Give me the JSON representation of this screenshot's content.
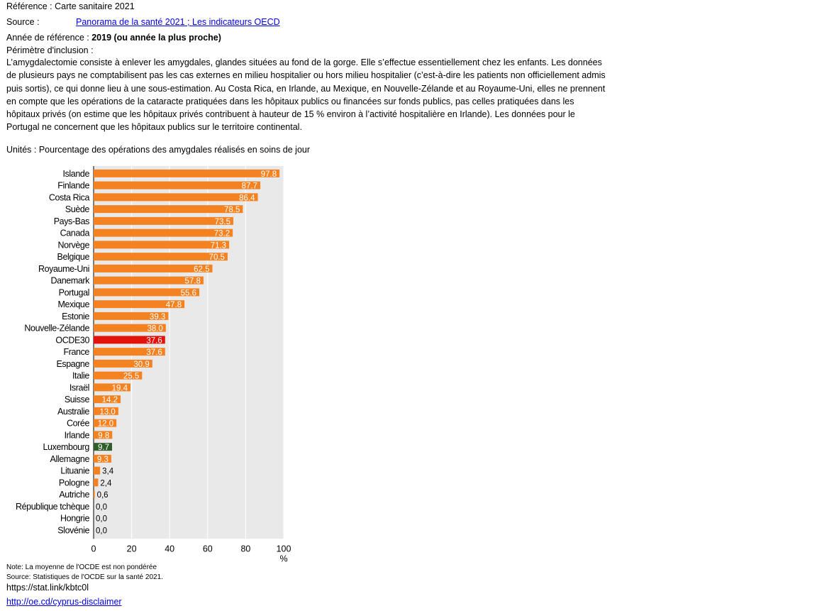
{
  "header": {
    "reference": "Référence : Carte sanitaire 2021",
    "source_label": "Source :",
    "source_link": "Panorama de la santé 2021 ; Les indicateurs OECD",
    "year_label": "Année de référence : ",
    "year_value": "2019 (ou année la plus proche)",
    "scope_label": "Périmètre d'inclusion :"
  },
  "description": "L’amygdalectomie consiste à enlever les amygdales, glandes situées au fond de la gorge. Elle s’effectue essentiellement chez les enfants. Les données de plusieurs pays ne comptabilisent pas les cas externes en milieu hospitalier ou hors milieu hospitalier (c’est-à-dire les patients non officiellement admis puis sortis), ce qui donne lieu à une sous-estimation. Au Costa Rica, en Irlande, au Mexique, en Nouvelle-Zélande et au Royaume-Uni, elles ne prennent en compte que les opérations de la cataracte pratiquées dans les hôpitaux publics ou financées sur fonds publics, pas celles pratiquées dans les hôpitaux privés (on estime que les hôpitaux privés contribuent à hauteur de 15 % environ à l’activité hospitalière en Irlande). Les données pour le Portugal ne concernent que les hôpitaux publics sur le territoire continental.",
  "units": "Unités : Pourcentage des opérations des amygdales réalisés en soins de jour",
  "colors": {
    "default": "#f58220",
    "oecd": "#e3120b",
    "luxembourg": "#2f5e2a",
    "background": "#e9e9e9",
    "gridline": "#ffffff"
  },
  "chart_data": {
    "type": "bar",
    "orientation": "horizontal",
    "categories": [
      "Islande",
      "Finlande",
      "Costa Rica",
      "Suède",
      "Pays-Bas",
      "Canada",
      "Norvège",
      "Belgique",
      "Royaume-Uni",
      "Danemark",
      "Portugal",
      "Mexique",
      "Estonie",
      "Nouvelle-Zélande",
      "OCDE30",
      "France",
      "Espagne",
      "Italie",
      "Israël",
      "Suisse",
      "Australie",
      "Corée",
      "Irlande",
      "Luxembourg",
      "Allemagne",
      "Lituanie",
      "Pologne",
      "Autriche",
      "République tchèque",
      "Hongrie",
      "Slovénie"
    ],
    "values": [
      97.8,
      87.7,
      86.4,
      78.5,
      73.5,
      73.2,
      71.3,
      70.5,
      62.5,
      57.8,
      55.6,
      47.8,
      39.3,
      38.0,
      37.6,
      37.6,
      30.9,
      25.5,
      19.4,
      14.2,
      13.0,
      12.0,
      9.8,
      9.7,
      9.3,
      3.4,
      2.4,
      0.6,
      0.0,
      0.0,
      0.0
    ],
    "value_labels": [
      "97.8",
      "87.7",
      "86.4",
      "78.5",
      "73.5",
      "73.2",
      "71.3",
      "70.5",
      "62.5",
      "57.8",
      "55.6",
      "47.8",
      "39.3",
      "38.0",
      "37.6",
      "37.6",
      "30.9",
      "25.5",
      "19.4",
      "14.2",
      "13.0",
      "12.0",
      "9.8",
      "9.7",
      "9.3",
      "3,4",
      "2,4",
      "0,6",
      "0,0",
      "0,0",
      "0,0"
    ],
    "highlight": {
      "OCDE30": "oecd",
      "Luxembourg": "luxembourg"
    },
    "xlim": [
      0,
      100
    ],
    "xticks": [
      "0",
      "20",
      "40",
      "60",
      "80",
      "100"
    ],
    "xunit": "%",
    "grid": true
  },
  "notes": {
    "note": "Note: La moyenne de l'OCDE est non pondérée",
    "source": "Source: Statistiques de l'OCDE sur la santé 2021.",
    "statlink": "https://stat.link/kbtc0l",
    "disclaimer": "http://oe.cd/cyprus-disclaimer"
  }
}
